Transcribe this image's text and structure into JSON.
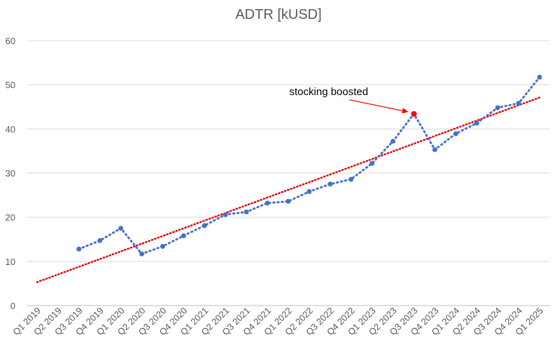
{
  "chart_data": {
    "type": "line",
    "title": "ADTR [kUSD]",
    "xlabel": "",
    "ylabel": "",
    "ylim": [
      0,
      60
    ],
    "yticks": [
      "0",
      "10",
      "20",
      "30",
      "40",
      "50",
      "60"
    ],
    "grid": true,
    "legend": "none",
    "categories": [
      "Q1 2019",
      "Q2 2019",
      "Q3 2019",
      "Q4 2019",
      "Q1 2020",
      "Q2 2020",
      "Q3 2020",
      "Q4 2020",
      "Q1 2021",
      "Q2 2021",
      "Q3 2021",
      "Q4 2021",
      "Q1 2022",
      "Q2 2022",
      "Q3 2022",
      "Q4 2022",
      "Q1 2023",
      "Q2 2023",
      "Q3 2023",
      "Q4 2023",
      "Q1 2024",
      "Q2 2024",
      "Q3 2024",
      "Q4 2024",
      "Q1 2025"
    ],
    "series": [
      {
        "values": [
          null,
          null,
          12.8,
          14.7,
          17.5,
          11.7,
          13.4,
          15.8,
          18.1,
          20.6,
          21.2,
          23.2,
          23.6,
          25.8,
          27.5,
          28.6,
          32.2,
          37.2,
          43.4,
          35.3,
          38.9,
          41.3,
          44.8,
          45.8,
          51.7
        ],
        "color": "#4472C4",
        "style": "dotted",
        "marker": "circle"
      }
    ],
    "trendline": {
      "type": "linear",
      "color": "#E00000",
      "style": "dotted",
      "start": {
        "category": "Q1 2019",
        "value": 5.3
      },
      "end": {
        "category": "Q1 2025",
        "value": 47.1
      }
    },
    "highlight": {
      "category": "Q3 2023",
      "value": 43.4,
      "color": "#FF0000"
    },
    "annotations": [
      {
        "text": "stocking boosted",
        "target_category": "Q3 2023",
        "target_value": 43.4,
        "arrow_color": "#FF0000"
      }
    ],
    "colors": {
      "axis_text": "#595959",
      "gridline": "#D9D9D9",
      "axis_line": "#BFBFBF"
    }
  }
}
